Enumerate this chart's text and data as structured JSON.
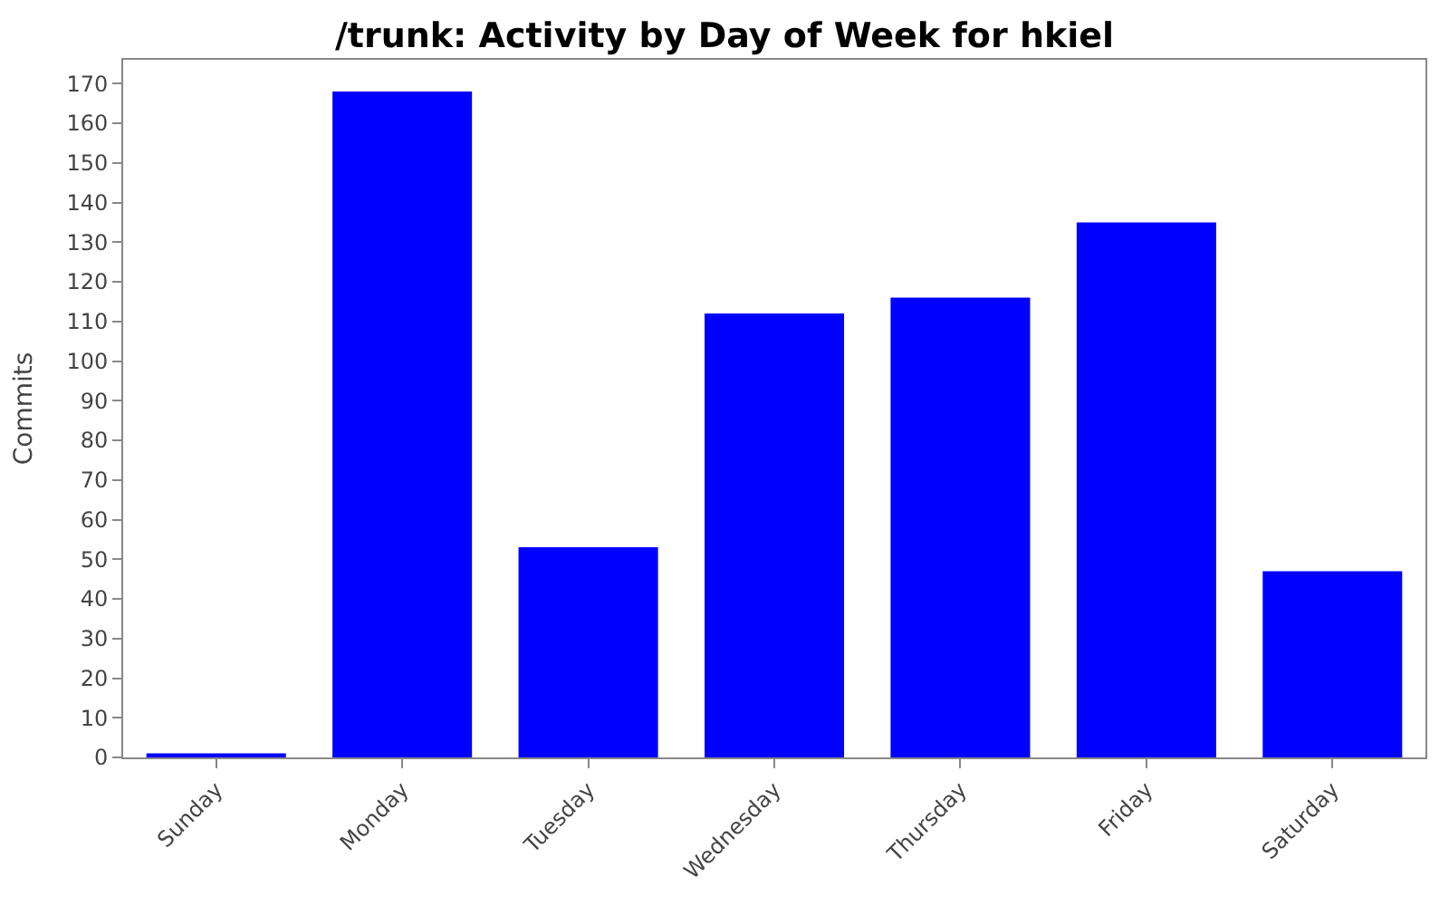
{
  "chart_data": {
    "type": "bar",
    "title": "/trunk: Activity by Day of Week for hkiel",
    "ylabel": "Commits",
    "categories": [
      "Sunday",
      "Monday",
      "Tuesday",
      "Wednesday",
      "Thursday",
      "Friday",
      "Saturday"
    ],
    "values": [
      1,
      168,
      53,
      112,
      116,
      135,
      47
    ],
    "color": "#0000ff",
    "ylim": [
      0,
      176
    ],
    "yticks": [
      0,
      10,
      20,
      30,
      40,
      50,
      60,
      70,
      80,
      90,
      100,
      110,
      120,
      130,
      140,
      150,
      160,
      170
    ]
  }
}
